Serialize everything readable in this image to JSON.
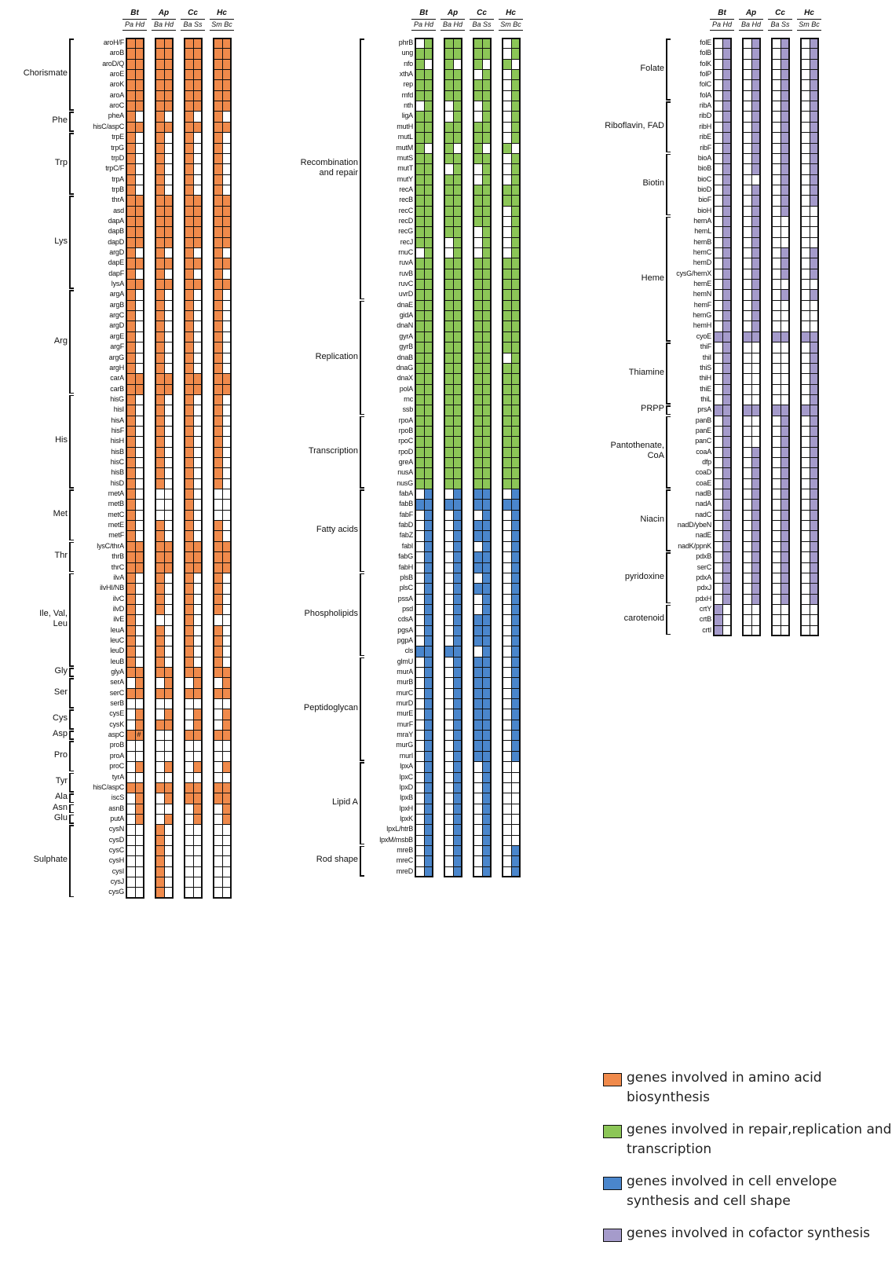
{
  "colors": {
    "amino": "#f08a4b",
    "repair": "#8cc657",
    "envelope": "#4a86cc",
    "cofactor": "#a59bcb"
  },
  "organisms": [
    {
      "name": "Bt",
      "strains": [
        "Pa",
        "Hd"
      ]
    },
    {
      "name": "Ap",
      "strains": [
        "Ba",
        "Hd"
      ]
    },
    {
      "name": "Cc",
      "strains": [
        "Ba",
        "Ss"
      ]
    },
    {
      "name": "Hc",
      "strains": [
        "Sm",
        "Bc"
      ]
    }
  ],
  "panels": [
    {
      "color": "amino",
      "groups": [
        {
          "label": "Chorismate",
          "genes": [
            "aroH/F",
            "aroB",
            "aroD/Q",
            "aroE",
            "aroK",
            "aroA",
            "aroC"
          ]
        },
        {
          "label": "Phe",
          "genes": [
            "pheA",
            "hisC/aspC"
          ]
        },
        {
          "label": "Trp",
          "genes": [
            "trpE",
            "trpG",
            "trpD",
            "trpC/F",
            "trpA",
            "trpB"
          ]
        },
        {
          "label": "Lys",
          "genes": [
            "thrA",
            "asd",
            "dapA",
            "dapB",
            "dapD",
            "argD",
            "dapE",
            "dapF",
            "lysA"
          ]
        },
        {
          "label": "Arg",
          "genes": [
            "argA",
            "argB",
            "argC",
            "argD",
            "argE",
            "argF",
            "argG",
            "argH",
            "carA",
            "carB"
          ]
        },
        {
          "label": "His",
          "genes": [
            "hisG",
            "hisI",
            "hisA",
            "hisF",
            "hisH",
            "hisB",
            "hisC",
            "hisB",
            "hisD"
          ]
        },
        {
          "label": "Met",
          "genes": [
            "metA",
            "metB",
            "metC",
            "metE",
            "metF"
          ]
        },
        {
          "label": "Thr",
          "genes": [
            "lysC/thrA",
            "thrB",
            "thrC"
          ]
        },
        {
          "label": "Ile, Val,|Leu",
          "genes": [
            "ilvA",
            "ilvHI/NB",
            "ilvC",
            "ilvD",
            "ilvE",
            "leuA",
            "leuC",
            "leuD",
            "leuB"
          ]
        },
        {
          "label": "Gly",
          "genes": [
            "glyA"
          ]
        },
        {
          "label": "Ser",
          "genes": [
            "serA",
            "serC",
            "serB"
          ]
        },
        {
          "label": "Cys",
          "genes": [
            "cysE",
            "cysK"
          ]
        },
        {
          "label": "Asp",
          "genes": [
            "aspC"
          ]
        },
        {
          "label": "Pro",
          "genes": [
            "proB",
            "proA",
            "proC"
          ]
        },
        {
          "label": "Tyr",
          "genes": [
            "tyrA",
            "hisC/aspC"
          ]
        },
        {
          "label": "Ala",
          "genes": [
            "iscS"
          ]
        },
        {
          "label": "Asn",
          "genes": [
            "asnB"
          ]
        },
        {
          "label": "Glu",
          "genes": [
            "putA"
          ]
        },
        {
          "label": "Sulphate",
          "genes": [
            "cysN",
            "cysD",
            "cysC",
            "cysH",
            "cysI",
            "cysJ",
            "cysG"
          ]
        }
      ],
      "rows": [
        "11111111",
        "11111111",
        "11111111",
        "11111111",
        "11111111",
        "11111111",
        "11111111",
        "10101010",
        "11111111",
        "10101010",
        "10101010",
        "10101010",
        "10101010",
        "10101010",
        "10101010",
        "11111111",
        "11111111",
        "11111111",
        "11111111",
        "11111111",
        "10101010",
        "11111111",
        "10101010",
        "11111111",
        "10101010",
        "10101010",
        "10101010",
        "10101010",
        "10101010",
        "10101010",
        "10101010",
        "10101010",
        "11111111",
        "11111111",
        "10101010",
        "10101010",
        "10101010",
        "10101010",
        "10101010",
        "10101010",
        "10101010",
        "10101010",
        "10101010",
        "10001000",
        "10001000",
        "10001000",
        "10101010",
        "10101010",
        "11111111",
        "11111111",
        "11111111",
        "10101010",
        "10101010",
        "10101010",
        "10101010",
        "10001000",
        "10101010",
        "10101010",
        "10101010",
        "10101010",
        "11111111",
        "01010101",
        "11111111",
        "00000000",
        "01010101",
        "01110101",
        "11001111",
        "00000000",
        "00000000",
        "01010101",
        "00000000",
        "11111111",
        "01011111",
        "01000101",
        "01010101",
        "00100000",
        "00100000",
        "00100000",
        "00100000",
        "00100000",
        "00100000",
        "00100000"
      ],
      "marks": [
        {
          "row": 66,
          "col": 1,
          "text": "#"
        }
      ]
    },
    {
      "color": "repair",
      "groups": [
        {
          "label": "Recombination|and repair",
          "genes": [
            "phrB",
            "ung",
            "nfo",
            "xthA",
            "rep",
            "mfd",
            "nth",
            "ligA",
            "mutH",
            "mutL",
            "mutM",
            "mutS",
            "mutT",
            "mutY",
            "recA",
            "recB",
            "recC",
            "recD",
            "recG",
            "recJ",
            "rnuC",
            "ruvA",
            "ruvB",
            "ruvC",
            "uvrD"
          ]
        },
        {
          "label": "Replication",
          "genes": [
            "dnaE",
            "gidA",
            "dnaN",
            "gyrA",
            "gyrB",
            "dnaB",
            "dnaG",
            "dnaX",
            "polA",
            "rnc",
            "ssb"
          ]
        },
        {
          "label": "Transcription",
          "genes": [
            "rpoA",
            "rpoB",
            "rpoC",
            "rpoD",
            "greA",
            "nusA",
            "nusG"
          ]
        }
      ],
      "rows": [
        "01111101",
        "11111101",
        "10101010",
        "11110101",
        "11111101",
        "11111101",
        "01010101",
        "11010101",
        "11111101",
        "11111101",
        "10101010",
        "11111101",
        "11010101",
        "11110101",
        "11111111",
        "11111111",
        "11111101",
        "11111101",
        "11110101",
        "11010101",
        "01010101",
        "11111111",
        "11111111",
        "11111111",
        "11111111",
        "11111111",
        "11111111",
        "11111111",
        "11111111",
        "11111111",
        "11111101",
        "11111111",
        "11111111",
        "11111111",
        "11111111",
        "11111111",
        "11111111",
        "11111111",
        "11111111",
        "11111111",
        "11111111",
        "11111111",
        "11111111"
      ],
      "marks": []
    },
    {
      "color": "envelope",
      "groups": [
        {
          "label": "Fatty acids",
          "genes": [
            "fabA",
            "fabB",
            "fabF",
            "fabD",
            "fabZ",
            "fabI",
            "fabG",
            "fabH"
          ]
        },
        {
          "label": "Phospholipids",
          "genes": [
            "plsB",
            "plsC",
            "pssA",
            "psd",
            "cdsA",
            "pgsA",
            "pgpA",
            "cls"
          ]
        },
        {
          "label": "Peptidoglycan",
          "genes": [
            "glmU",
            "murA",
            "murB",
            "murC",
            "murD",
            "murE",
            "murF",
            "mraY",
            "murG",
            "murI"
          ]
        },
        {
          "label": "Lipid A",
          "genes": [
            "lpxA",
            "lpxC",
            "lpxD",
            "lpxB",
            "lpxH",
            "lpxK",
            "lpxL/htrB",
            "lpxM/msbB"
          ]
        },
        {
          "label": "Rod shape",
          "genes": [
            "mreB",
            "mreC",
            "mreD"
          ]
        }
      ],
      "rows": [
        "01011101",
        "11111111",
        "01010101",
        "01011101",
        "01011101",
        "01010101",
        "01011101",
        "01011101",
        "01010101",
        "01011101",
        "01010101",
        "01010101",
        "01011101",
        "01011101",
        "01011101",
        "11110101",
        "01011101",
        "01011101",
        "01011101",
        "01011101",
        "01011101",
        "01011101",
        "01011101",
        "01011101",
        "01011101",
        "01011101",
        "01010100",
        "01010100",
        "01010100",
        "01010100",
        "01010100",
        "01010100",
        "01010100",
        "01010100",
        "01010101",
        "01010101",
        "01010101"
      ],
      "marks": []
    },
    {
      "color": "cofactor",
      "groups": [
        {
          "label": "Folate",
          "genes": [
            "folE",
            "folB",
            "folK",
            "folP",
            "folC",
            "folA"
          ]
        },
        {
          "label": "Riboflavin, FAD",
          "genes": [
            "ribA",
            "ribD",
            "ribH",
            "ribE",
            "ribF"
          ]
        },
        {
          "label": "Biotin",
          "genes": [
            "bioA",
            "bioB",
            "bioC",
            "bioD",
            "bioF",
            "bioH"
          ]
        },
        {
          "label": "Heme",
          "genes": [
            "hemA",
            "hemL",
            "hemB",
            "hemC",
            "hemD",
            "cysG/hemX",
            "hemE",
            "hemN",
            "hemF",
            "hemG",
            "hemH",
            "cyoE"
          ]
        },
        {
          "label": "Thiamine",
          "genes": [
            "thiF",
            "thiI",
            "thiS",
            "thiH",
            "thiE",
            "thiL"
          ]
        },
        {
          "label": "PRPP",
          "genes": [
            "prsA"
          ]
        },
        {
          "label": "Pantothenate,|CoA",
          "genes": [
            "panB",
            "panE",
            "panC",
            "coaA",
            "dfp",
            "coaD",
            "coaE"
          ]
        },
        {
          "label": "Niacin",
          "genes": [
            "nadB",
            "nadA",
            "nadC",
            "nadD/ybeN",
            "nadE",
            "nadK/ppnK"
          ]
        },
        {
          "label": "pyridoxine",
          "genes": [
            "pdxB",
            "serC",
            "pdxA",
            "pdxJ",
            "pdxH"
          ]
        },
        {
          "label": "carotenoid",
          "genes": [
            "crtY",
            "crtB",
            "crtI"
          ]
        }
      ],
      "rows": [
        "01010101",
        "01010101",
        "01010101",
        "01010101",
        "01010101",
        "01010101",
        "01010101",
        "01010101",
        "01010101",
        "01010101",
        "01010101",
        "01010101",
        "01010101",
        "01000101",
        "01010101",
        "01010101",
        "01010100",
        "01010000",
        "01010000",
        "01010000",
        "01010101",
        "01010101",
        "01010101",
        "01010000",
        "01010101",
        "01010000",
        "01010000",
        "01010000",
        "11111111",
        "01000001",
        "01000001",
        "01000001",
        "01000001",
        "01000001",
        "01000001",
        "11111111",
        "01000101",
        "01000101",
        "01000101",
        "01010101",
        "01010101",
        "01010101",
        "01010101",
        "01010101",
        "01010101",
        "01010101",
        "01010101",
        "01010101",
        "01010101",
        "01010101",
        "01010101",
        "01010101",
        "01010101",
        "01010101",
        "10000000",
        "10000000",
        "10000000"
      ],
      "marks": []
    }
  ],
  "legend": [
    {
      "color": "amino",
      "text": "genes involved in amino acid biosynthesis"
    },
    {
      "color": "repair",
      "text": "genes involved in repair,replication and transcription"
    },
    {
      "color": "envelope",
      "text": "genes involved in cell envelope synthesis and cell shape"
    },
    {
      "color": "cofactor",
      "text": "genes involved in cofactor synthesis"
    }
  ]
}
